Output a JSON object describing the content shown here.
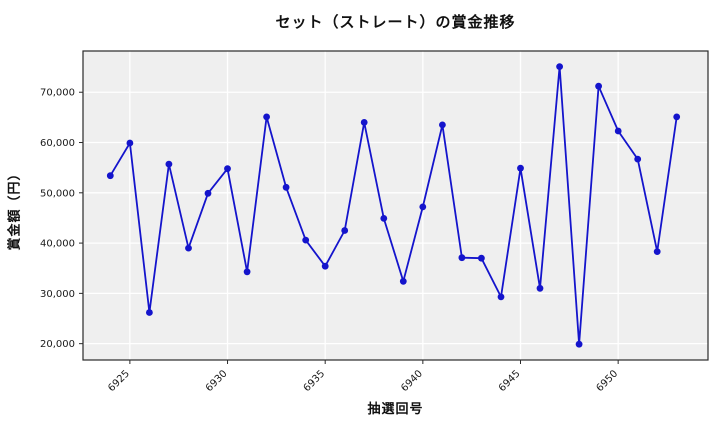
{
  "chart_data": {
    "type": "line",
    "title": "セット（ストレート）の賞金推移",
    "xlabel": "抽選回号",
    "ylabel": "賞金額（円）",
    "x": [
      6924,
      6925,
      6926,
      6927,
      6928,
      6929,
      6930,
      6931,
      6932,
      6933,
      6934,
      6935,
      6936,
      6937,
      6938,
      6939,
      6940,
      6941,
      6942,
      6943,
      6944,
      6945,
      6946,
      6947,
      6948,
      6949,
      6950,
      6951,
      6952,
      6953
    ],
    "values": [
      53400,
      59900,
      26200,
      55700,
      39000,
      49900,
      54800,
      34300,
      65100,
      51100,
      40600,
      35400,
      42500,
      64000,
      44900,
      32400,
      47200,
      63500,
      37100,
      37000,
      29300,
      54900,
      31000,
      75100,
      19900,
      71200,
      62300,
      56700,
      38300,
      65100
    ],
    "xticks": [
      6925,
      6930,
      6935,
      6940,
      6945,
      6950
    ],
    "yticks": [
      20000,
      30000,
      40000,
      50000,
      60000,
      70000
    ],
    "xlim": [
      6922.6,
      6954.6
    ],
    "ylim": [
      16750,
      78200
    ],
    "grid": true,
    "legend_position": "none",
    "line_color": "#1414cc",
    "marker_color": "#1414cc",
    "plot_bg_color": "#efefef",
    "grid_color": "#ffffff",
    "frame_color": "#2a2a2a",
    "tick_color": "#1a1a1a"
  }
}
